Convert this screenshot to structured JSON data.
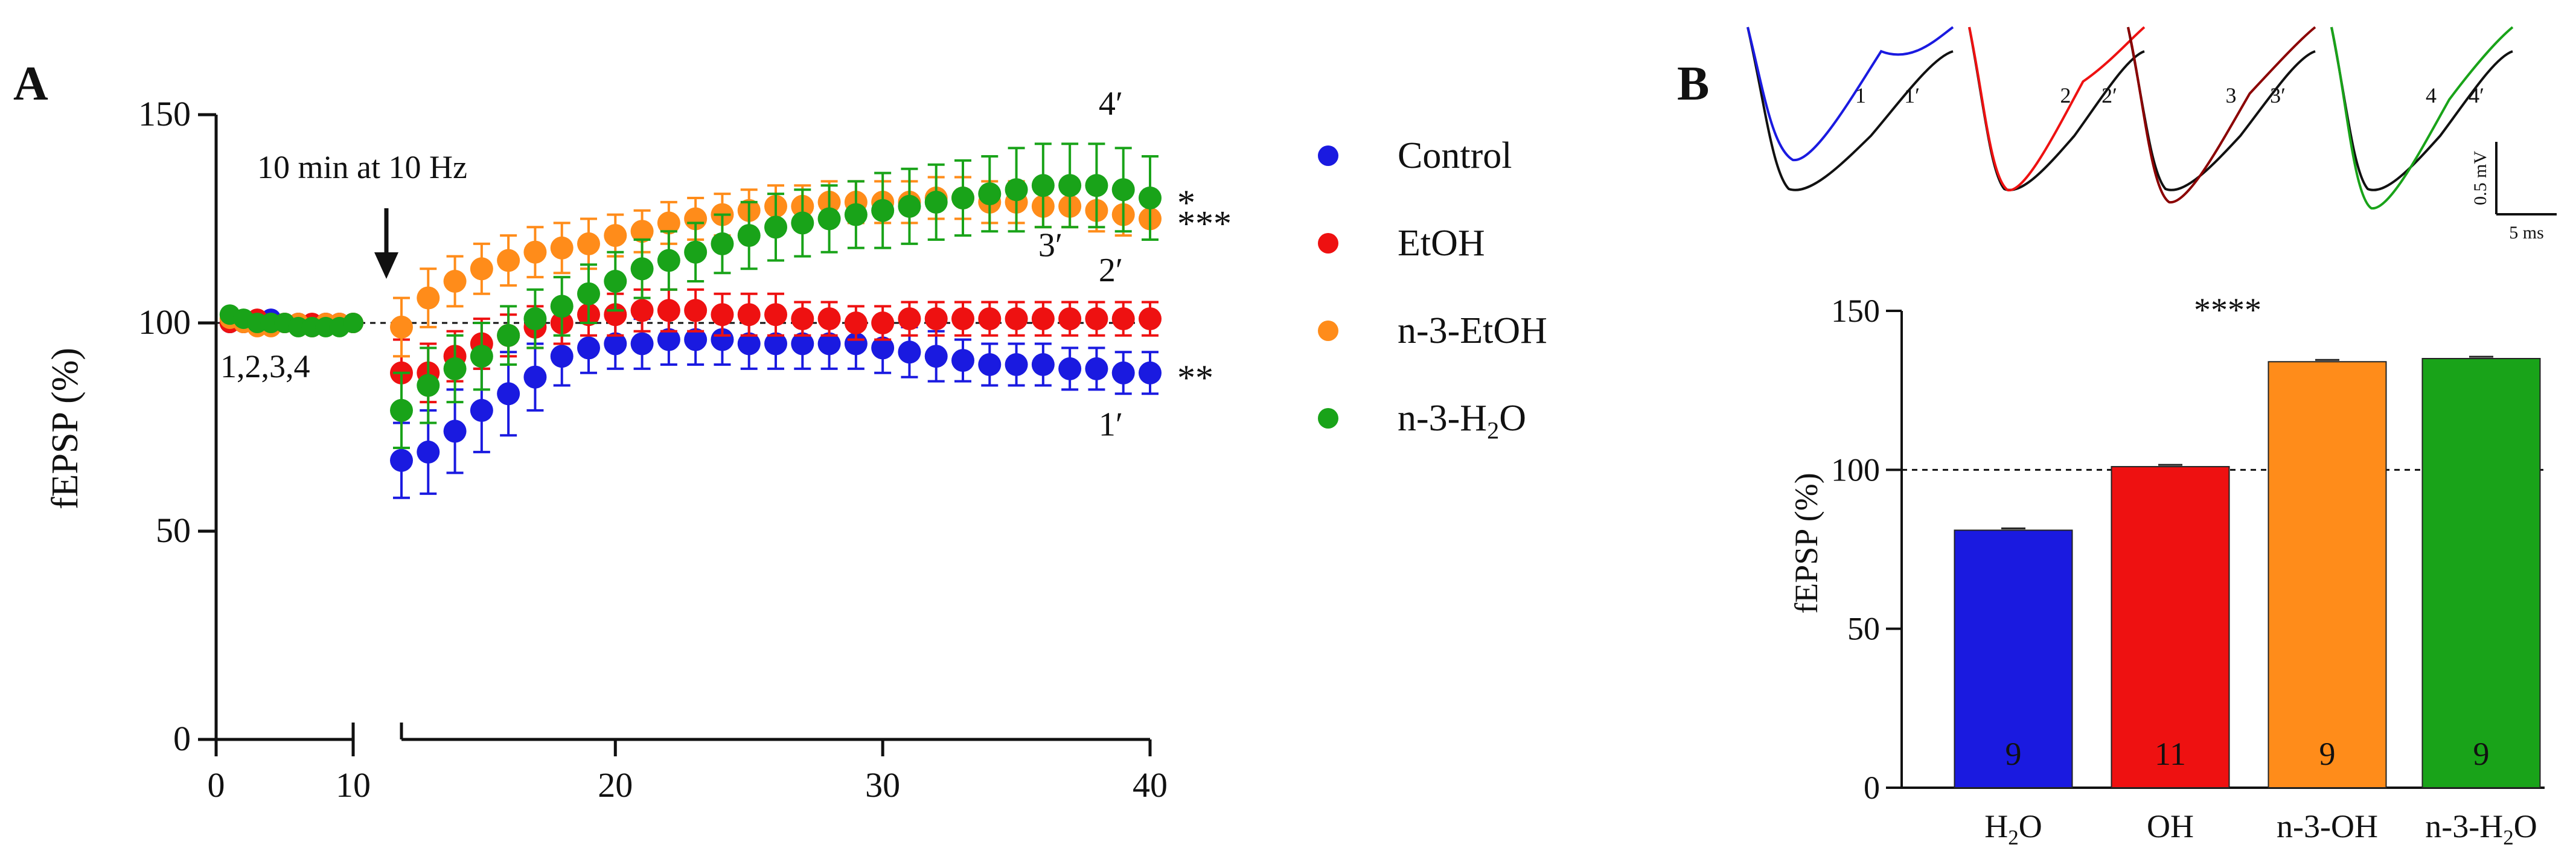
{
  "panels": {
    "a_label": "A",
    "b_label": "B"
  },
  "chart_data": [
    {
      "type": "scatter",
      "id": "panel-a",
      "title": "",
      "ylabel": "fEPSP (%)",
      "xlabel": "",
      "ylim": [
        0,
        150
      ],
      "yticks": [
        0,
        50,
        100,
        150
      ],
      "xticks": [
        0,
        10,
        20,
        30,
        40
      ],
      "xlim_pre": [
        0,
        10
      ],
      "xlim_post": [
        12,
        40
      ],
      "baseline_label": "1,2,3,4",
      "baseline_value": 100,
      "annotation": "10 min at 10 Hz",
      "colors": {
        "Control": "#1a1ae0",
        "EtOH": "#ee1111",
        "n-3-EtOH": "#ff8c1a",
        "n-3-H2O": "#19a319"
      },
      "legend": [
        {
          "name": "Control",
          "sub": ""
        },
        {
          "name": "EtOH",
          "sub": ""
        },
        {
          "name": "n-3-H",
          "sub": "2",
          "tail": "O"
        }
      ],
      "legend_full": [
        "Control",
        "EtOH",
        "n-3-EtOH",
        "n-3-H2O"
      ],
      "series": [
        {
          "name": "Control",
          "pre_x": [
            1,
            2,
            3,
            4,
            5,
            6,
            7,
            8,
            9,
            10
          ],
          "pre_y": [
            100,
            100,
            100,
            101,
            100,
            100,
            99,
            100,
            100,
            100
          ],
          "post_x": [
            12,
            13,
            14,
            15,
            16,
            17,
            18,
            19,
            20,
            21,
            22,
            23,
            24,
            25,
            26,
            27,
            28,
            29,
            30,
            31,
            32,
            33,
            34,
            35,
            36,
            37,
            38,
            39,
            40
          ],
          "post_y": [
            67,
            69,
            74,
            79,
            83,
            87,
            92,
            94,
            95,
            95,
            96,
            96,
            96,
            95,
            95,
            95,
            95,
            95,
            94,
            93,
            92,
            91,
            90,
            90,
            90,
            89,
            89,
            88,
            88
          ],
          "err": [
            9,
            10,
            10,
            10,
            10,
            8,
            7,
            6,
            6,
            6,
            6,
            6,
            6,
            6,
            6,
            6,
            6,
            6,
            6,
            6,
            6,
            5,
            5,
            5,
            5,
            5,
            5,
            5,
            5
          ],
          "end_label": "**",
          "trace_label": "1′"
        },
        {
          "name": "EtOH",
          "pre_x": [
            1,
            2,
            3,
            4,
            5,
            6,
            7,
            8,
            9,
            10
          ],
          "pre_y": [
            100,
            100,
            101,
            100,
            100,
            100,
            100,
            100,
            100,
            100
          ],
          "post_x": [
            12,
            13,
            14,
            15,
            16,
            17,
            18,
            19,
            20,
            21,
            22,
            23,
            24,
            25,
            26,
            27,
            28,
            29,
            30,
            31,
            32,
            33,
            34,
            35,
            36,
            37,
            38,
            39,
            40
          ],
          "post_y": [
            88,
            88,
            92,
            95,
            97,
            99,
            100,
            102,
            102,
            103,
            103,
            103,
            102,
            102,
            102,
            101,
            101,
            100,
            100,
            101,
            101,
            101,
            101,
            101,
            101,
            101,
            101,
            101,
            101
          ],
          "err": [
            8,
            7,
            6,
            6,
            5,
            5,
            5,
            5,
            5,
            5,
            5,
            5,
            5,
            5,
            5,
            4,
            4,
            4,
            4,
            4,
            4,
            4,
            4,
            4,
            4,
            4,
            4,
            4,
            4
          ],
          "end_label": "",
          "trace_label": "2′"
        },
        {
          "name": "n-3-EtOH",
          "pre_x": [
            1,
            2,
            3,
            4,
            5,
            6,
            7,
            8,
            9,
            10
          ],
          "pre_y": [
            101,
            100,
            99,
            99,
            100,
            100,
            99,
            100,
            100,
            100
          ],
          "post_x": [
            12,
            13,
            14,
            15,
            16,
            17,
            18,
            19,
            20,
            21,
            22,
            23,
            24,
            25,
            26,
            27,
            28,
            29,
            30,
            31,
            32,
            33,
            34,
            35,
            36,
            37,
            38,
            39,
            40
          ],
          "post_y": [
            99,
            106,
            110,
            113,
            115,
            117,
            118,
            119,
            121,
            122,
            124,
            125,
            126,
            127,
            128,
            128,
            129,
            129,
            129,
            129,
            130,
            130,
            129,
            129,
            128,
            128,
            127,
            126,
            125
          ],
          "err": [
            7,
            7,
            6,
            6,
            6,
            6,
            6,
            6,
            5,
            5,
            5,
            5,
            5,
            5,
            5,
            5,
            5,
            5,
            5,
            5,
            5,
            5,
            5,
            5,
            5,
            5,
            5,
            5,
            5
          ],
          "end_label": "***",
          "trace_label": "3′"
        },
        {
          "name": "n-3-H2O",
          "pre_x": [
            1,
            2,
            3,
            4,
            5,
            6,
            7,
            8,
            9,
            10
          ],
          "pre_y": [
            102,
            101,
            100,
            100,
            100,
            99,
            99,
            99,
            99,
            100
          ],
          "post_x": [
            12,
            13,
            14,
            15,
            16,
            17,
            18,
            19,
            20,
            21,
            22,
            23,
            24,
            25,
            26,
            27,
            28,
            29,
            30,
            31,
            32,
            33,
            34,
            35,
            36,
            37,
            38,
            39,
            40
          ],
          "post_y": [
            79,
            85,
            89,
            92,
            97,
            101,
            104,
            107,
            110,
            113,
            115,
            117,
            119,
            121,
            123,
            124,
            125,
            126,
            127,
            128,
            129,
            130,
            131,
            132,
            133,
            133,
            133,
            132,
            130
          ],
          "err": [
            9,
            9,
            8,
            8,
            7,
            7,
            7,
            7,
            7,
            7,
            7,
            7,
            7,
            8,
            8,
            8,
            8,
            8,
            9,
            9,
            9,
            9,
            9,
            10,
            10,
            10,
            10,
            10,
            10
          ],
          "end_label": "*",
          "trace_label": "4′"
        }
      ]
    },
    {
      "type": "bar",
      "id": "panel-b",
      "title": "",
      "ylabel": "fEPSP (%)",
      "ylim": [
        0,
        150
      ],
      "yticks": [
        0,
        50,
        100,
        150
      ],
      "reference_line": 100,
      "significance": "****",
      "categories": [
        "H2O",
        "OH",
        "n-3-OH",
        "n-3-H2O"
      ],
      "category_labels": [
        {
          "pre": "H",
          "sub": "2",
          "post": "O"
        },
        {
          "pre": "OH",
          "sub": "",
          "post": ""
        },
        {
          "pre": "n-3-OH",
          "sub": "",
          "post": ""
        },
        {
          "pre": "n-3-H",
          "sub": "2",
          "post": "O"
        }
      ],
      "values": [
        81,
        101,
        134,
        135
      ],
      "n": [
        "9",
        "11",
        "9",
        "9"
      ],
      "colors": [
        "#1a1ae0",
        "#ee1111",
        "#ff8c1a",
        "#19a319"
      ]
    }
  ],
  "traces": {
    "pairs": [
      {
        "before": "1",
        "after": "1′",
        "color": "#1a1ae0"
      },
      {
        "before": "2",
        "after": "2′",
        "color": "#ee1111"
      },
      {
        "before": "3",
        "after": "3′",
        "color": "#8b0000"
      },
      {
        "before": "4",
        "after": "4′",
        "color": "#19a319"
      }
    ],
    "scale_v": "0.5 mV",
    "scale_h": "5 ms"
  }
}
